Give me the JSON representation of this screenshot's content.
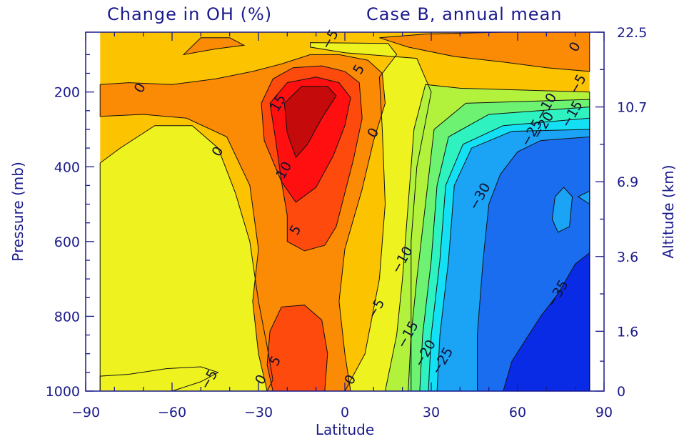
{
  "chart_data": {
    "type": "heatmap",
    "subtype": "filled-contour",
    "title_left": "Change in  OH (%)",
    "title_right": "Case B, annual mean",
    "xlabel": "Latitude",
    "ylabel": "Pressure (mb)",
    "ylabel_right": "Altitude (km)",
    "xlim": [
      -90,
      90
    ],
    "ylim": [
      1000,
      40
    ],
    "x_ticks": [
      -90,
      -60,
      -30,
      0,
      30,
      60,
      90
    ],
    "x_tick_labels": [
      "−90",
      "−60",
      "−30",
      "0",
      "30",
      "60",
      "90"
    ],
    "y_ticks": [
      200,
      400,
      600,
      800,
      1000
    ],
    "y_tick_labels": [
      "200",
      "400",
      "600",
      "800",
      "1000"
    ],
    "y2_ticks": [
      {
        "label": "22.5",
        "pressure": 40
      },
      {
        "label": "10.7",
        "pressure": 240
      },
      {
        "label": "6.9",
        "pressure": 440
      },
      {
        "label": "3.6",
        "pressure": 640
      },
      {
        "label": "1.6",
        "pressure": 840
      },
      {
        "label": "0",
        "pressure": 1000
      }
    ],
    "data_x_range": [
      -85,
      85
    ],
    "contour_levels": [
      -35,
      -30,
      -25,
      -20,
      -15,
      -10,
      -5,
      0,
      5,
      10,
      15
    ],
    "level_colors": {
      "below_-35": "#0a2be6",
      "-35_to_-30": "#1b6df0",
      "-30_to_-25": "#1ba3f5",
      "-25_to_-20": "#14e0f5",
      "-20_to_-15": "#2ef2c0",
      "-15_to_-10": "#6ef271",
      "-10_to_-5": "#b3f23c",
      "-5_to_0": "#eef21f",
      "0_to_5": "#fcc400",
      "5_to_10": "#fb8a04",
      "10_to_15": "#fe4a0c",
      "15_to_20": "#ff0f0f",
      "above_20": "#c40a0a"
    },
    "contour_labels": [
      {
        "text": "−5",
        "lat": -5,
        "p": 60
      },
      {
        "text": "5",
        "lat": 5,
        "p": 140
      },
      {
        "text": "0",
        "lat": 80,
        "p": 80
      },
      {
        "text": "−5",
        "lat": 81,
        "p": 180
      },
      {
        "text": "0",
        "lat": -71,
        "p": 190
      },
      {
        "text": "15",
        "lat": -23,
        "p": 230
      },
      {
        "text": "0",
        "lat": 10,
        "p": 310
      },
      {
        "text": "−10",
        "lat": 70,
        "p": 240
      },
      {
        "text": "−15",
        "lat": 79,
        "p": 260
      },
      {
        "text": "−20",
        "lat": 69,
        "p": 290
      },
      {
        "text": "−25",
        "lat": 65,
        "p": 310
      },
      {
        "text": "0",
        "lat": -44,
        "p": 360
      },
      {
        "text": "10",
        "lat": -21,
        "p": 410
      },
      {
        "text": "−30",
        "lat": 47,
        "p": 480
      },
      {
        "text": "5",
        "lat": -17,
        "p": 570
      },
      {
        "text": "−10",
        "lat": 20,
        "p": 650
      },
      {
        "text": "−35",
        "lat": 74,
        "p": 740
      },
      {
        "text": "−5",
        "lat": 11,
        "p": 780
      },
      {
        "text": "−15",
        "lat": 22,
        "p": 850
      },
      {
        "text": "−20",
        "lat": 28,
        "p": 900
      },
      {
        "text": "−25",
        "lat": 34,
        "p": 920
      },
      {
        "text": "5",
        "lat": -24,
        "p": 920
      },
      {
        "text": "0",
        "lat": -29,
        "p": 970
      },
      {
        "text": "0",
        "lat": 2,
        "p": 970
      },
      {
        "text": "−5",
        "lat": -47,
        "p": 970
      }
    ]
  }
}
